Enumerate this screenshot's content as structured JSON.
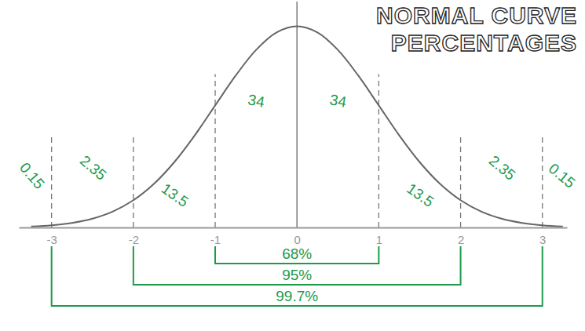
{
  "chart_data": {
    "type": "line",
    "title": "NORMAL CURVE PERCENTAGES",
    "x": [
      -3.25,
      -3,
      -2.75,
      -2.5,
      -2.25,
      -2,
      -1.75,
      -1.5,
      -1.25,
      -1,
      -0.75,
      -0.5,
      -0.25,
      0,
      0.25,
      0.5,
      0.75,
      1,
      1.25,
      1.5,
      1.75,
      2,
      2.25,
      2.5,
      2.75,
      3,
      3.25
    ],
    "values": [
      0.002,
      0.0044,
      0.0091,
      0.0175,
      0.0317,
      0.054,
      0.0863,
      0.1295,
      0.1826,
      0.242,
      0.3011,
      0.3521,
      0.3867,
      0.3989,
      0.3867,
      0.3521,
      0.3011,
      0.242,
      0.1826,
      0.1295,
      0.0863,
      0.054,
      0.0317,
      0.0175,
      0.0091,
      0.0044,
      0.002
    ],
    "color": "#666666",
    "xlim": [
      -3.4,
      3.3
    ],
    "xticks": [
      -3,
      -2,
      -1,
      0,
      1,
      2,
      3
    ],
    "ylim": [
      0,
      0.42
    ],
    "tick_labels": "x",
    "region_bounds": [
      -3,
      -2,
      -1,
      0,
      1,
      2,
      3
    ],
    "region_values": [
      0.15,
      2.35,
      13.5,
      34,
      34,
      13.5,
      2.35,
      0.15
    ],
    "brackets": [
      {
        "from": -1,
        "to": 1,
        "label": "68%"
      },
      {
        "from": -2,
        "to": 2,
        "label": "95%"
      },
      {
        "from": -3,
        "to": 3,
        "label": "99.7%"
      }
    ]
  }
}
